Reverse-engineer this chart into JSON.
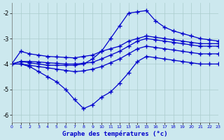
{
  "title": "Graphe des températures (°c)",
  "background_color": "#cce8ee",
  "grid_color": "#aacccc",
  "line_color": "#0000cc",
  "x_min": 0,
  "x_max": 23,
  "y_min": -6.3,
  "y_max": -1.6,
  "yticks": [
    -6,
    -5,
    -4,
    -3,
    -2
  ],
  "xticks": [
    0,
    1,
    2,
    3,
    4,
    5,
    6,
    7,
    8,
    9,
    10,
    11,
    12,
    13,
    14,
    15,
    16,
    17,
    18,
    19,
    20,
    21,
    22,
    23
  ],
  "line_upper_x": [
    0,
    1,
    2,
    3,
    4,
    5,
    6,
    7,
    8,
    9,
    10,
    11,
    12,
    13,
    14,
    15,
    16,
    17,
    18,
    19,
    20,
    21,
    22,
    23
  ],
  "line_upper_y": [
    -4.0,
    -3.5,
    -3.6,
    -3.65,
    -3.7,
    -3.72,
    -3.74,
    -3.76,
    -3.7,
    -3.65,
    -3.5,
    -3.4,
    -3.3,
    -3.1,
    -3.0,
    -2.9,
    -2.95,
    -3.0,
    -3.05,
    -3.1,
    -3.15,
    -3.2,
    -3.2,
    -3.2
  ],
  "line_mid_x": [
    0,
    1,
    2,
    3,
    4,
    5,
    6,
    7,
    8,
    9,
    10,
    11,
    12,
    13,
    14,
    15,
    16,
    17,
    18,
    19,
    20,
    21,
    22,
    23
  ],
  "line_mid_y": [
    -4.0,
    -3.9,
    -3.9,
    -3.92,
    -3.95,
    -3.97,
    -4.0,
    -4.0,
    -3.97,
    -3.93,
    -3.8,
    -3.65,
    -3.5,
    -3.3,
    -3.1,
    -3.0,
    -3.05,
    -3.1,
    -3.15,
    -3.2,
    -3.25,
    -3.3,
    -3.3,
    -3.3
  ],
  "line_lower_x": [
    0,
    1,
    2,
    3,
    4,
    5,
    6,
    7,
    8,
    9,
    10,
    11,
    12,
    13,
    14,
    15,
    16,
    17,
    18,
    19,
    20,
    21,
    22,
    23
  ],
  "line_lower_y": [
    -4.0,
    -4.0,
    -4.05,
    -4.1,
    -4.15,
    -4.2,
    -4.25,
    -4.3,
    -4.27,
    -4.2,
    -4.1,
    -3.95,
    -3.8,
    -3.6,
    -3.4,
    -3.3,
    -3.35,
    -3.4,
    -3.45,
    -3.5,
    -3.55,
    -3.6,
    -3.6,
    -3.6
  ],
  "line_zigzag_x": [
    0,
    1,
    2,
    3,
    4,
    5,
    6,
    7,
    8,
    9,
    10,
    11,
    12,
    13,
    14,
    15,
    16,
    17,
    18,
    19,
    20,
    21,
    22,
    23
  ],
  "line_zigzag_y": [
    -4.0,
    -4.0,
    -4.1,
    -4.3,
    -4.5,
    -4.7,
    -5.0,
    -5.4,
    -5.75,
    -5.6,
    -5.3,
    -5.1,
    -4.75,
    -4.35,
    -3.9,
    -3.7,
    -3.75,
    -3.8,
    -3.85,
    -3.9,
    -3.95,
    -4.0,
    -4.0,
    -4.0
  ],
  "line_peak_x": [
    0,
    1,
    2,
    3,
    4,
    5,
    6,
    7,
    8,
    9,
    10,
    11,
    12,
    13,
    14,
    15,
    16,
    17,
    18,
    19,
    20,
    21,
    22,
    23
  ],
  "line_peak_y": [
    -4.0,
    -3.9,
    -3.95,
    -4.0,
    -4.05,
    -4.05,
    -4.05,
    -4.05,
    -4.0,
    -3.8,
    -3.5,
    -3.0,
    -2.5,
    -2.0,
    -1.95,
    -1.9,
    -2.3,
    -2.55,
    -2.7,
    -2.8,
    -2.9,
    -3.0,
    -3.05,
    -3.1
  ]
}
